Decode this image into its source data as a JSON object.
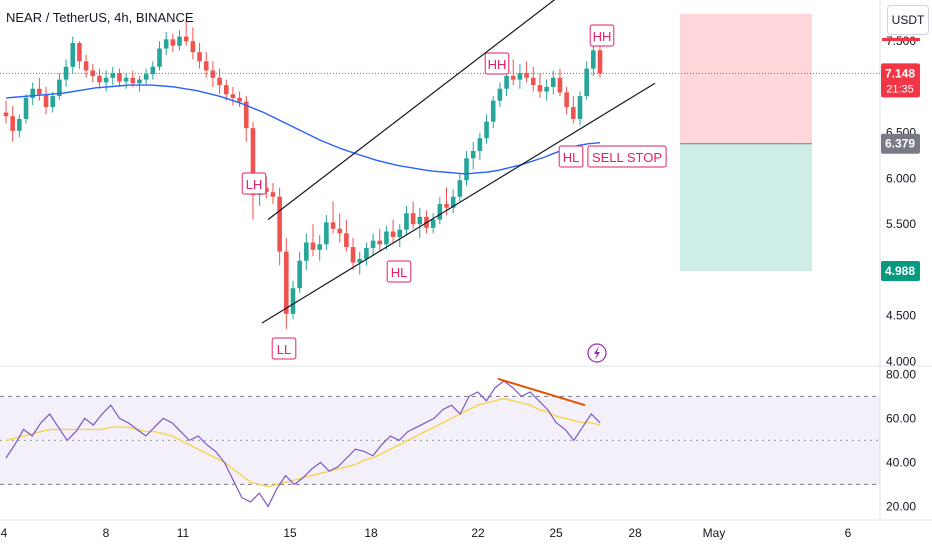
{
  "header": {
    "title": "NEAR / TetherUS, 4h, BINANCE",
    "currency": "USDT"
  },
  "colors": {
    "up": "#26a69a",
    "down": "#ef5350",
    "ma": "#2962ff",
    "rsi": "#7e57c2",
    "rsi_ma": "#f7d34d",
    "annot": "#e91e63",
    "divergence": "#e65100",
    "stop_red_zone": "#ffcdd2",
    "target_green_zone": "#c8ebe3"
  },
  "chart_data": [
    {
      "type": "candlestick",
      "title": "NEAR / TetherUS, 4h, BINANCE",
      "y_axis_ticks": [
        "4.000",
        "4.500",
        "5.000",
        "5.500",
        "6.000",
        "6.500",
        "7.000",
        "7.500"
      ],
      "ylim": [
        3.95,
        7.95
      ],
      "x_axis_ticks": [
        "4",
        "8",
        "11",
        "15",
        "18",
        "22",
        "25",
        "28",
        "May",
        "6"
      ],
      "price_labels": [
        {
          "value": 7.148,
          "label": "7.148",
          "sublabel": "21:35",
          "color": "#f23645"
        },
        {
          "value": 6.379,
          "label": "6.379",
          "color": "#787b86"
        },
        {
          "value": 4.988,
          "label": "4.988",
          "color": "#089981"
        }
      ],
      "position_zones": {
        "stop_top": 7.8,
        "entry": 6.379,
        "target": 4.988
      },
      "annotations": [
        {
          "text": "LH",
          "price": 6.0
        },
        {
          "text": "LL",
          "price": 4.1
        },
        {
          "text": "HL",
          "price": 4.9
        },
        {
          "text": "HH",
          "price": 7.62
        },
        {
          "text": "HH",
          "price": 7.9
        },
        {
          "text": "HL",
          "price": 6.45
        },
        {
          "text": "SELL STOP",
          "price": 6.45
        }
      ],
      "channel": {
        "lower": [
          [
            4.42,
            7.04
          ]
        ],
        "upper": [
          [
            5.55,
            8.25
          ]
        ]
      },
      "candles": [
        [
          6.72,
          6.85,
          6.6,
          6.68
        ],
        [
          6.68,
          6.79,
          6.4,
          6.52
        ],
        [
          6.52,
          6.7,
          6.45,
          6.65
        ],
        [
          6.65,
          6.92,
          6.6,
          6.88
        ],
        [
          6.88,
          7.05,
          6.8,
          6.98
        ],
        [
          6.98,
          7.1,
          6.85,
          6.92
        ],
        [
          6.92,
          7.0,
          6.7,
          6.78
        ],
        [
          6.78,
          6.95,
          6.72,
          6.9
        ],
        [
          6.9,
          7.15,
          6.86,
          7.08
        ],
        [
          7.08,
          7.3,
          7.0,
          7.22
        ],
        [
          7.22,
          7.55,
          7.15,
          7.48
        ],
        [
          7.48,
          7.5,
          7.2,
          7.28
        ],
        [
          7.28,
          7.35,
          7.1,
          7.18
        ],
        [
          7.18,
          7.25,
          7.05,
          7.12
        ],
        [
          7.12,
          7.2,
          6.98,
          7.05
        ],
        [
          7.05,
          7.18,
          6.95,
          7.1
        ],
        [
          7.1,
          7.22,
          7.02,
          7.15
        ],
        [
          7.15,
          7.2,
          7.0,
          7.06
        ],
        [
          7.06,
          7.15,
          6.98,
          7.1
        ],
        [
          7.1,
          7.18,
          7.0,
          7.04
        ],
        [
          7.04,
          7.12,
          6.95,
          7.08
        ],
        [
          7.08,
          7.2,
          7.02,
          7.14
        ],
        [
          7.14,
          7.28,
          7.08,
          7.22
        ],
        [
          7.22,
          7.5,
          7.18,
          7.42
        ],
        [
          7.42,
          7.6,
          7.35,
          7.52
        ],
        [
          7.52,
          7.58,
          7.38,
          7.45
        ],
        [
          7.45,
          7.62,
          7.4,
          7.55
        ],
        [
          7.55,
          7.72,
          7.45,
          7.5
        ],
        [
          7.5,
          7.65,
          7.3,
          7.38
        ],
        [
          7.38,
          7.48,
          7.2,
          7.28
        ],
        [
          7.28,
          7.38,
          7.1,
          7.18
        ],
        [
          7.18,
          7.28,
          7.0,
          7.1
        ],
        [
          7.1,
          7.2,
          6.92,
          7.02
        ],
        [
          7.02,
          7.08,
          6.85,
          6.92
        ],
        [
          6.92,
          7.0,
          6.8,
          6.88
        ],
        [
          6.88,
          6.95,
          6.78,
          6.84
        ],
        [
          6.84,
          6.9,
          6.4,
          6.55
        ],
        [
          6.55,
          6.62,
          5.55,
          5.82
        ],
        [
          5.82,
          6.0,
          5.7,
          5.9
        ],
        [
          5.9,
          6.02,
          5.78,
          5.85
        ],
        [
          5.85,
          5.95,
          5.72,
          5.8
        ],
        [
          5.8,
          5.9,
          5.05,
          5.2
        ],
        [
          5.2,
          5.35,
          4.35,
          4.52
        ],
        [
          4.52,
          4.88,
          4.46,
          4.8
        ],
        [
          4.8,
          5.2,
          4.75,
          5.1
        ],
        [
          5.1,
          5.4,
          5.0,
          5.3
        ],
        [
          5.3,
          5.5,
          5.15,
          5.22
        ],
        [
          5.22,
          5.38,
          5.1,
          5.28
        ],
        [
          5.28,
          5.6,
          5.22,
          5.52
        ],
        [
          5.52,
          5.75,
          5.4,
          5.45
        ],
        [
          5.45,
          5.62,
          5.3,
          5.4
        ],
        [
          5.4,
          5.55,
          5.2,
          5.25
        ],
        [
          5.25,
          5.35,
          5.0,
          5.08
        ],
        [
          5.08,
          5.2,
          4.95,
          5.12
        ],
        [
          5.12,
          5.3,
          5.05,
          5.24
        ],
        [
          5.24,
          5.4,
          5.15,
          5.32
        ],
        [
          5.32,
          5.45,
          5.2,
          5.28
        ],
        [
          5.28,
          5.48,
          5.22,
          5.42
        ],
        [
          5.42,
          5.55,
          5.3,
          5.36
        ],
        [
          5.36,
          5.5,
          5.25,
          5.44
        ],
        [
          5.44,
          5.7,
          5.38,
          5.62
        ],
        [
          5.62,
          5.75,
          5.45,
          5.5
        ],
        [
          5.5,
          5.68,
          5.35,
          5.58
        ],
        [
          5.58,
          5.65,
          5.4,
          5.46
        ],
        [
          5.46,
          5.62,
          5.4,
          5.55
        ],
        [
          5.55,
          5.8,
          5.5,
          5.72
        ],
        [
          5.72,
          5.9,
          5.6,
          5.68
        ],
        [
          5.68,
          5.88,
          5.62,
          5.8
        ],
        [
          5.8,
          6.05,
          5.75,
          5.98
        ],
        [
          5.98,
          6.3,
          5.92,
          6.22
        ],
        [
          6.22,
          6.4,
          6.1,
          6.3
        ],
        [
          6.3,
          6.5,
          6.2,
          6.44
        ],
        [
          6.44,
          6.7,
          6.38,
          6.62
        ],
        [
          6.62,
          6.9,
          6.55,
          6.85
        ],
        [
          6.85,
          7.05,
          6.78,
          6.98
        ],
        [
          6.98,
          7.2,
          6.9,
          7.12
        ],
        [
          7.12,
          7.3,
          7.02,
          7.08
        ],
        [
          7.08,
          7.25,
          6.98,
          7.15
        ],
        [
          7.15,
          7.28,
          7.05,
          7.1
        ],
        [
          7.1,
          7.22,
          6.95,
          7.02
        ],
        [
          7.02,
          7.15,
          6.88,
          6.95
        ],
        [
          6.95,
          7.08,
          6.85,
          7.0
        ],
        [
          7.0,
          7.18,
          6.92,
          7.1
        ],
        [
          7.1,
          7.2,
          6.9,
          6.94
        ],
        [
          6.94,
          7.0,
          6.7,
          6.78
        ],
        [
          6.78,
          6.9,
          6.6,
          6.65
        ],
        [
          6.65,
          6.95,
          6.58,
          6.9
        ],
        [
          6.9,
          7.28,
          6.86,
          7.2
        ],
        [
          7.2,
          7.55,
          7.12,
          7.4
        ],
        [
          7.4,
          7.5,
          7.1,
          7.148
        ]
      ],
      "moving_average": [
        6.88,
        6.89,
        6.9,
        6.91,
        6.92,
        6.93,
        6.95,
        6.97,
        6.99,
        7.0,
        7.01,
        7.02,
        7.02,
        7.02,
        7.01,
        7.0,
        6.98,
        6.96,
        6.93,
        6.9,
        6.86,
        6.82,
        6.77,
        6.72,
        6.66,
        6.6,
        6.54,
        6.48,
        6.42,
        6.37,
        6.32,
        6.28,
        6.24,
        6.2,
        6.17,
        6.14,
        6.12,
        6.1,
        6.08,
        6.07,
        6.06,
        6.05,
        6.06,
        6.07,
        6.09,
        6.12,
        6.15,
        6.19,
        6.23,
        6.28,
        6.32,
        6.36,
        6.38,
        6.39
      ]
    },
    {
      "type": "line",
      "title": "RSI",
      "y_axis_ticks": [
        "20.00",
        "40.00",
        "60.00",
        "80.00"
      ],
      "ylim": [
        17,
        82
      ],
      "bands": {
        "upper": 70,
        "middle": 50,
        "lower": 30
      },
      "series": [
        {
          "values": [
            42,
            48,
            55,
            52,
            58,
            62,
            56,
            50,
            54,
            60,
            57,
            62,
            66,
            60,
            58,
            55,
            52,
            56,
            60,
            58,
            54,
            50,
            52,
            48,
            45,
            40,
            32,
            24,
            22,
            26,
            20,
            28,
            34,
            30,
            33,
            37,
            40,
            36,
            38,
            42,
            46,
            45,
            43,
            48,
            52,
            50,
            54,
            56,
            58,
            60,
            64,
            66,
            62,
            70,
            72,
            68,
            74,
            77,
            74,
            70,
            72,
            68,
            64,
            58,
            55,
            50,
            56,
            62,
            58
          ],
          "ma": [
            50,
            51,
            52,
            53,
            54,
            55,
            55,
            55,
            55,
            55,
            55,
            55,
            56,
            56,
            56,
            55,
            54,
            54,
            53,
            52,
            50,
            48,
            46,
            44,
            42,
            40,
            37,
            34,
            31,
            30,
            29,
            30,
            31,
            32,
            33,
            34,
            35,
            36,
            37,
            38,
            39,
            41,
            42,
            44,
            46,
            48,
            50,
            52,
            54,
            56,
            58,
            60,
            62,
            64,
            66,
            67,
            68,
            69,
            68,
            67,
            66,
            64,
            63,
            61,
            60,
            59,
            58,
            58,
            57
          ]
        }
      ],
      "divergence_values": [
        78,
        66
      ]
    }
  ]
}
